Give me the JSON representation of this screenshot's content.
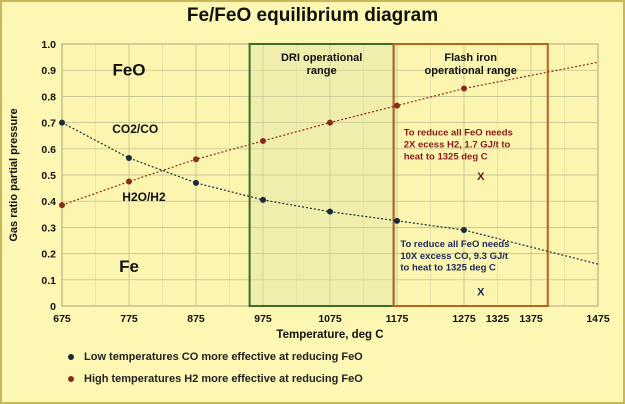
{
  "title": "Fe/FeO equilibrium diagram",
  "chart_data": {
    "type": "line",
    "xlabel": "Temperature, deg C",
    "ylabel": "Gas ratio partial pressure",
    "xlim": [
      675,
      1475
    ],
    "ylim": [
      0,
      1.0
    ],
    "x_ticks": [
      "675",
      "775",
      "875",
      "975",
      "1075",
      "1175",
      "1275",
      "1375",
      "1475"
    ],
    "y_ticks": [
      "0",
      "0.1",
      "0.2",
      "0.3",
      "0.4",
      "0.5",
      "0.6",
      "0.7",
      "0.8",
      "0.9",
      "1.0"
    ],
    "extra_x_tick": {
      "value": 1325,
      "label": "1325"
    },
    "grid": true,
    "series": [
      {
        "name": "CO2/CO",
        "color": "#1a2a3a",
        "points": [
          [
            675,
            0.7
          ],
          [
            775,
            0.565
          ],
          [
            875,
            0.47
          ],
          [
            975,
            0.405
          ],
          [
            1075,
            0.36
          ],
          [
            1175,
            0.325
          ],
          [
            1275,
            0.29
          ]
        ],
        "trend_end": [
          1475,
          0.16
        ]
      },
      {
        "name": "H2O/H2",
        "color": "#8a2a1a",
        "points": [
          [
            675,
            0.385
          ],
          [
            775,
            0.475
          ],
          [
            875,
            0.56
          ],
          [
            975,
            0.63
          ],
          [
            1075,
            0.7
          ],
          [
            1175,
            0.765
          ],
          [
            1275,
            0.83
          ]
        ],
        "trend_end": [
          1475,
          0.93
        ]
      }
    ],
    "regions": [
      {
        "label": "DRI operational range",
        "x0": 955,
        "x1": 1170,
        "color": "#3d6b2a"
      },
      {
        "label": "Flash iron operational range",
        "x0": 1170,
        "x1": 1400,
        "color": "#b8641c"
      }
    ],
    "annotations": [
      {
        "text": "FeO",
        "x": 775,
        "y": 0.88
      },
      {
        "text": "Fe",
        "x": 775,
        "y": 0.13
      },
      {
        "text": "CO2/CO",
        "x": 750,
        "y": 0.66
      },
      {
        "text": "H2O/H2",
        "x": 765,
        "y": 0.4
      },
      {
        "text": "To reduce all FeO needs",
        "x": 1185,
        "y": 0.65
      },
      {
        "text": "2X  ecess H2, 1.7 GJ/t to",
        "x": 1185,
        "y": 0.605
      },
      {
        "text": "heat to 1325 deg C",
        "x": 1185,
        "y": 0.56
      },
      {
        "text": "X",
        "x": 1300,
        "y": 0.48
      },
      {
        "text": "To reduce all FeO needs",
        "x": 1180,
        "y": 0.225
      },
      {
        "text": "10X excess CO, 9.3 GJ/t",
        "x": 1180,
        "y": 0.18
      },
      {
        "text": "to heat to 1325 deg C",
        "x": 1180,
        "y": 0.135
      },
      {
        "text": "X",
        "x": 1300,
        "y": 0.04
      }
    ]
  },
  "legend": [
    {
      "text": "Low temperatures CO more effective at reducing FeO",
      "color": "#1a2a3a"
    },
    {
      "text": "High temperatures H2 more effective at reducing FeO",
      "color": "#8a2a1a"
    }
  ]
}
